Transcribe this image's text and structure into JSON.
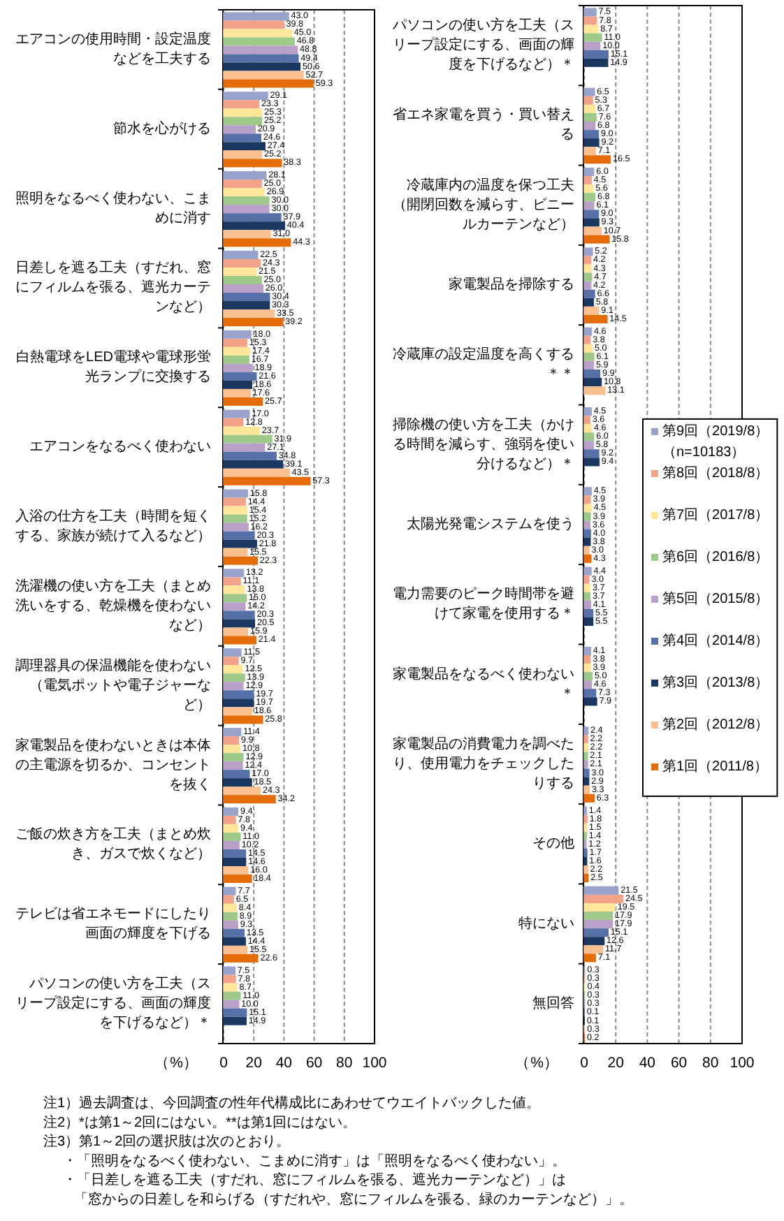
{
  "chart_data": [
    {
      "type": "bar",
      "orientation": "horizontal",
      "categories": [
        "エアコンの使用時間・設定温度などを工夫する",
        "節水を心がける",
        "照明をなるべく使わない、こまめに消す",
        "日差しを遮る工夫（すだれ、窓にフィルムを張る、遮光カーテンなど）",
        "白熱電球をLED電球や電球形蛍光ランプに交換する",
        "エアコンをなるべく使わない",
        "入浴の仕方を工夫（時間を短くする、家族が続けて入るなど）",
        "洗濯機の使い方を工夫（まとめ洗いをする、乾燥機を使わないなど）",
        "調理器具の保温機能を使わない（電気ポットや電子ジャーなど）",
        "家電製品を使わないときは本体の主電源を切るか、コンセントを抜く",
        "ご飯の炊き方を工夫（まとめ炊き、ガスで炊くなど）",
        "テレビは省エネモードにしたり画面の輝度を下げる",
        "パソコンの使い方を工夫（スリープ設定にする、画面の輝度を下げるなど）＊"
      ],
      "series": [
        {
          "color": "#99a3cc",
          "values": [
            43.0,
            29.1,
            28.1,
            22.5,
            18.0,
            17.0,
            15.8,
            13.2,
            11.5,
            11.4,
            9.4,
            7.7,
            7.5
          ],
          "value_labels": [
            "43.0",
            "29.1",
            "28.1",
            "22.5",
            "18.0",
            "17.0",
            "15.8",
            "13.2",
            "11.5",
            "11.4",
            "9.4",
            "7.7",
            "7.5"
          ]
        },
        {
          "color": "#f2a38a",
          "values": [
            39.8,
            23.3,
            25.0,
            24.3,
            15.3,
            12.8,
            14.4,
            11.1,
            9.7,
            9.9,
            7.8,
            6.5,
            7.8
          ],
          "value_labels": [
            "39.8",
            "23.3",
            "25.0",
            "24.3",
            "15.3",
            "12.8",
            "14.4",
            "11.1",
            "9.7",
            "9.9",
            "7.8",
            "6.5",
            "7.8"
          ]
        },
        {
          "color": "#ffe699",
          "values": [
            45.0,
            25.3,
            26.9,
            21.5,
            17.4,
            23.7,
            15.4,
            13.8,
            12.5,
            10.8,
            9.4,
            8.4,
            8.7
          ],
          "value_labels": [
            "45.0",
            "25.3",
            "26.9",
            "21.5",
            "17.4",
            "23.7",
            "15.4",
            "13.8",
            "12.5",
            "10.8",
            "9.4",
            "8.4",
            "8.7"
          ]
        },
        {
          "color": "#9fc98a",
          "values": [
            46.8,
            25.2,
            30.0,
            25.0,
            16.7,
            31.9,
            15.2,
            15.0,
            13.9,
            12.9,
            11.0,
            8.9,
            11.0
          ],
          "value_labels": [
            "46.8",
            "25.2",
            "30.0",
            "25.0",
            "16.7",
            "31.9",
            "15.2",
            "15.0",
            "13.9",
            "12.9",
            "11.0",
            "8.9",
            "11.0"
          ]
        },
        {
          "color": "#b8a0c8",
          "values": [
            48.8,
            20.9,
            30.0,
            26.0,
            18.9,
            27.1,
            16.2,
            14.2,
            12.9,
            12.4,
            10.2,
            9.3,
            10.0
          ],
          "value_labels": [
            "48.8",
            "20.9",
            "30.0",
            "26.0",
            "18.9",
            "27.1",
            "16.2",
            "14.2",
            "12.9",
            "12.4",
            "10.2",
            "9.3",
            "10.0"
          ]
        },
        {
          "color": "#5670a8",
          "values": [
            49.4,
            24.6,
            37.9,
            30.4,
            21.6,
            34.8,
            20.3,
            20.3,
            19.7,
            17.0,
            14.5,
            13.5,
            15.1
          ],
          "value_labels": [
            "49.4",
            "24.6",
            "37.9",
            "30.4",
            "21.6",
            "34.8",
            "20.3",
            "20.3",
            "19.7",
            "17.0",
            "14.5",
            "13.5",
            "15.1"
          ]
        },
        {
          "color": "#1a3760",
          "values": [
            50.6,
            27.4,
            40.4,
            30.3,
            18.6,
            39.1,
            21.8,
            20.5,
            19.7,
            18.5,
            14.6,
            14.4,
            14.9
          ],
          "value_labels": [
            "50.6",
            "27.4",
            "40.4",
            "30.3",
            "18.6",
            "39.1",
            "21.8",
            "20.5",
            "19.7",
            "18.5",
            "14.6",
            "14.4",
            "14.9"
          ]
        },
        {
          "color": "#fac08f",
          "values": [
            52.7,
            25.2,
            31.0,
            33.5,
            17.6,
            43.5,
            15.5,
            15.9,
            18.6,
            24.3,
            16.0,
            15.5,
            null
          ],
          "value_labels": [
            "52.7",
            "25.2",
            "31.0",
            "33.5",
            "17.6",
            "43.5",
            "15.5",
            "15.9",
            "18.6",
            "24.3",
            "16.0",
            "15.5",
            null
          ]
        },
        {
          "color": "#e46c0a",
          "values": [
            59.3,
            38.3,
            44.3,
            39.2,
            25.7,
            57.3,
            22.3,
            21.4,
            25.8,
            34.2,
            18.4,
            22.6,
            null
          ],
          "value_labels": [
            "59.3",
            "38.3",
            "44.3",
            "39.2",
            "25.7",
            "57.3",
            "22.3",
            "21.4",
            "25.8",
            "34.2",
            "18.4",
            "22.6",
            null
          ]
        }
      ],
      "xlim": [
        0,
        100
      ],
      "xticks": [
        0,
        20,
        40,
        60,
        80,
        100
      ],
      "xlabel": "（%）",
      "grid": "x",
      "annotations": [
        "注1）過去調査は、今回調査の性年代構成比にあわせてウエイトバックした値。",
        "注2）*は第1～2回にはない。**は第1回にはない。",
        "注3）第1～2回の選択肢は次のとおり。",
        "・「照明をなるべく使わない、こまめに消す」は「照明をなるべく使わない」。",
        "・「日差しを遮る工夫（すだれ、窓にフィルムを張る、遮光カーテンなど）」は",
        "「窓からの日差しを和らげる（すだれや、窓にフィルムを張る、緑のカーテンなど）」。"
      ]
    },
    {
      "type": "bar",
      "orientation": "horizontal",
      "categories": [
        "パソコンの使い方を工夫（スリープ設定にする、画面の輝度を下げるなど）＊",
        "省エネ家電を買う・買い替える",
        "冷蔵庫内の温度を保つ工夫（開閉回数を減らす、ビニールカーテンなど）",
        "家電製品を掃除する",
        "冷蔵庫の設定温度を高くする＊＊",
        "掃除機の使い方を工夫（かける時間を減らす、強弱を使い分けるなど）＊",
        "太陽光発電システムを使う",
        "電力需要のピーク時間帯を避けて家電を使用する＊",
        "家電製品をなるべく使わない＊",
        "家電製品の消費電力を調べたり、使用電力をチェックしたりする",
        "その他",
        "特にない",
        "無回答"
      ],
      "series": [
        {
          "name": "第9回（2019/8）（n=10183）",
          "color": "#99a3cc",
          "values": [
            7.5,
            6.5,
            6.0,
            5.2,
            4.6,
            4.5,
            4.5,
            4.4,
            4.1,
            2.4,
            1.4,
            21.5,
            0.3
          ],
          "value_labels": [
            "7.5",
            "6.5",
            "6.0",
            "5.2",
            "4.6",
            "4.5",
            "4.5",
            "4.4",
            "4.1",
            "2.4",
            "1.4",
            "21.5",
            "0.3"
          ]
        },
        {
          "name": "第8回（2018/8）",
          "color": "#f2a38a",
          "values": [
            7.8,
            5.3,
            4.5,
            4.2,
            3.8,
            3.6,
            3.9,
            3.0,
            3.8,
            2.2,
            1.8,
            24.5,
            0.3
          ],
          "value_labels": [
            "7.8",
            "5.3",
            "4.5",
            "4.2",
            "3.8",
            "3.6",
            "3.9",
            "3.0",
            "3.8",
            "2.2",
            "1.8",
            "24.5",
            "0.3"
          ]
        },
        {
          "name": "第7回（2017/8）",
          "color": "#ffe699",
          "values": [
            8.7,
            6.7,
            5.6,
            4.3,
            5.0,
            4.6,
            4.5,
            3.7,
            3.9,
            2.2,
            1.5,
            19.5,
            0.4
          ],
          "value_labels": [
            "8.7",
            "6.7",
            "5.6",
            "4.3",
            "5.0",
            "4.6",
            "4.5",
            "3.7",
            "3.9",
            "2.2",
            "1.5",
            "19.5",
            "0.4"
          ]
        },
        {
          "name": "第6回（2016/8）",
          "color": "#9fc98a",
          "values": [
            11.0,
            7.6,
            6.8,
            4.7,
            6.1,
            6.0,
            3.9,
            3.7,
            5.0,
            2.1,
            1.4,
            17.9,
            0.3
          ],
          "value_labels": [
            "11.0",
            "7.6",
            "6.8",
            "4.7",
            "6.1",
            "6.0",
            "3.9",
            "3.7",
            "5.0",
            "2.1",
            "1.4",
            "17.9",
            "0.3"
          ]
        },
        {
          "name": "第5回（2015/8）",
          "color": "#b8a0c8",
          "values": [
            10.0,
            6.8,
            6.1,
            4.2,
            5.9,
            5.8,
            3.6,
            4.1,
            4.6,
            2.1,
            1.2,
            17.9,
            0.3
          ],
          "value_labels": [
            "10.0",
            "6.8",
            "6.1",
            "4.2",
            "5.9",
            "5.8",
            "3.6",
            "4.1",
            "4.6",
            "2.1",
            "1.2",
            "17.9",
            "0.3"
          ]
        },
        {
          "name": "第4回（2014/8）",
          "color": "#5670a8",
          "values": [
            15.1,
            9.0,
            9.0,
            6.6,
            9.9,
            9.2,
            4.0,
            5.5,
            7.3,
            3.0,
            1.7,
            15.1,
            0.1
          ],
          "value_labels": [
            "15.1",
            "9.0",
            "9.0",
            "6.6",
            "9.9",
            "9.2",
            "4.0",
            "5.5",
            "7.3",
            "3.0",
            "1.7",
            "15.1",
            "0.1"
          ]
        },
        {
          "name": "第3回（2013/8）",
          "color": "#1a3760",
          "values": [
            14.9,
            9.2,
            9.3,
            5.8,
            10.8,
            9.4,
            3.8,
            5.5,
            7.9,
            2.9,
            1.6,
            12.6,
            0.1
          ],
          "value_labels": [
            "14.9",
            "9.2",
            "9.3",
            "5.8",
            "10.8",
            "9.4",
            "3.8",
            "5.5",
            "7.9",
            "2.9",
            "1.6",
            "12.6",
            "0.1"
          ]
        },
        {
          "name": "第2回（2012/8）",
          "color": "#fac08f",
          "values": [
            null,
            7.1,
            10.7,
            9.1,
            13.1,
            null,
            3.0,
            null,
            null,
            3.3,
            2.2,
            11.7,
            0.3
          ],
          "value_labels": [
            null,
            "7.1",
            "10.7",
            "9.1",
            "13.1",
            null,
            "3.0",
            null,
            null,
            "3.3",
            "2.2",
            "11.7",
            "0.3"
          ]
        },
        {
          "name": "第1回（2011/8）",
          "color": "#e46c0a",
          "values": [
            null,
            16.5,
            15.8,
            14.5,
            null,
            null,
            4.3,
            null,
            null,
            6.3,
            2.5,
            7.1,
            0.2
          ],
          "value_labels": [
            null,
            "16.5",
            "15.8",
            "14.5",
            null,
            null,
            "4.3",
            null,
            null,
            "6.3",
            "2.5",
            "7.1",
            "0.2"
          ]
        }
      ],
      "xlim": [
        0,
        100
      ],
      "xticks": [
        0,
        20,
        40,
        60,
        80,
        100
      ],
      "xlabel": "（%）",
      "grid": "x",
      "legend": "right"
    }
  ]
}
